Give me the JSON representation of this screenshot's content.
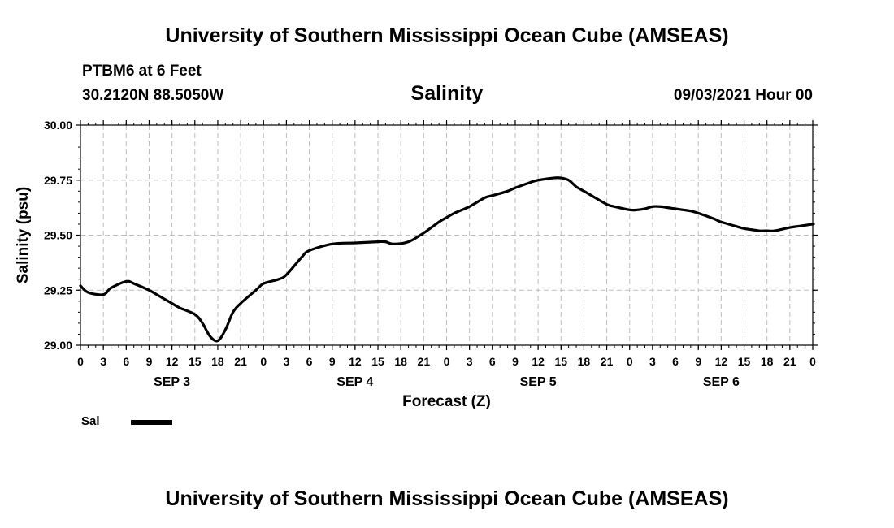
{
  "header": {
    "main_title": "University of Southern Mississippi Ocean Cube (AMSEAS)",
    "station": "PTBM6 at 6 Feet",
    "coordinates": "30.2120N  88.5050W",
    "chart_title": "Salinity",
    "datetime": "09/03/2021 Hour 00"
  },
  "footer": {
    "main_title": "University of Southern Mississippi Ocean Cube (AMSEAS)"
  },
  "legend": {
    "label": "Sal",
    "color": "#000000"
  },
  "chart_data": {
    "type": "line",
    "title": "Salinity",
    "xlabel": "Forecast (Z)",
    "ylabel": "Salinity (psu)",
    "ylim": [
      29.0,
      30.0
    ],
    "xlim": [
      0,
      96
    ],
    "grid": true,
    "y_ticks": [
      "29.00",
      "29.25",
      "29.50",
      "29.75",
      "30.00"
    ],
    "x_tick_labels": [
      "0",
      "3",
      "6",
      "9",
      "12",
      "15",
      "18",
      "21",
      "0",
      "3",
      "6",
      "9",
      "12",
      "15",
      "18",
      "21",
      "0",
      "3",
      "6",
      "9",
      "12",
      "15",
      "18",
      "21",
      "0",
      "3",
      "6",
      "9",
      "12",
      "15",
      "18",
      "21",
      "0"
    ],
    "day_labels": [
      "SEP 3",
      "SEP 4",
      "SEP 5",
      "SEP 6"
    ],
    "series": [
      {
        "name": "Sal",
        "x": [
          0,
          1,
          3,
          4,
          6,
          7,
          9,
          10,
          12,
          13,
          15,
          16,
          17,
          18,
          19,
          20,
          21,
          23,
          24,
          26,
          27,
          29,
          30,
          33,
          36,
          39,
          40,
          41,
          43,
          45,
          47,
          48,
          49,
          51,
          53,
          54,
          56,
          57,
          59,
          60,
          62,
          63,
          64,
          65,
          66,
          67,
          69,
          70,
          72,
          73,
          74,
          75,
          76,
          77,
          78,
          79,
          80,
          81,
          83,
          84,
          86,
          87,
          88,
          89,
          90,
          91,
          93,
          94,
          95,
          96
        ],
        "y": [
          29.27,
          29.24,
          29.23,
          29.26,
          29.29,
          29.28,
          29.25,
          29.23,
          29.19,
          29.17,
          29.14,
          29.1,
          29.04,
          29.02,
          29.07,
          29.15,
          29.19,
          29.25,
          29.28,
          29.3,
          29.32,
          29.4,
          29.43,
          29.46,
          29.465,
          29.47,
          29.47,
          29.46,
          29.47,
          29.51,
          29.56,
          29.58,
          29.6,
          29.63,
          29.67,
          29.68,
          29.7,
          29.715,
          29.74,
          29.75,
          29.76,
          29.76,
          29.75,
          29.72,
          29.7,
          29.68,
          29.64,
          29.63,
          29.615,
          29.615,
          29.62,
          29.63,
          29.63,
          29.625,
          29.62,
          29.615,
          29.61,
          29.6,
          29.575,
          29.56,
          29.54,
          29.53,
          29.525,
          29.52,
          29.52,
          29.52,
          29.535,
          29.54,
          29.545,
          29.55
        ]
      }
    ]
  }
}
